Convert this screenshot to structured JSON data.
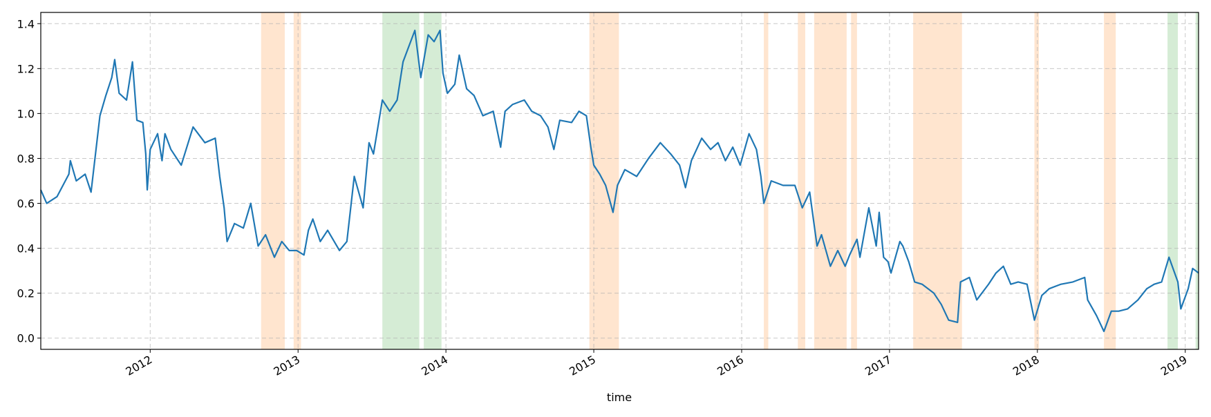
{
  "chart_data": {
    "type": "line",
    "x_label": "time",
    "xlim": [
      2011.26,
      2019.09
    ],
    "xticks": [
      2012,
      2013,
      2014,
      2015,
      2016,
      2017,
      2018,
      2019
    ],
    "ylim": [
      -0.05,
      1.45
    ],
    "yticks": [
      {
        "value": 0,
        "label": "0.0"
      },
      0.2,
      0.4,
      0.6,
      0.8,
      {
        "value": 1,
        "label": "1.0"
      },
      1.2,
      1.4
    ],
    "grid": true,
    "spans": [
      {
        "color": "#ff7f0e",
        "x": [
          2012.75,
          2012.91
        ]
      },
      {
        "color": "#ff7f0e",
        "x": [
          2012.97,
          2013.02
        ]
      },
      {
        "color": "#2ca02c",
        "x": [
          2013.57,
          2013.82
        ]
      },
      {
        "color": "#2ca02c",
        "x": [
          2013.85,
          2013.97
        ]
      },
      {
        "color": "#ff7f0e",
        "x": [
          2014.97,
          2015.17
        ]
      },
      {
        "color": "#ff7f0e",
        "x": [
          2016.15,
          2016.18
        ]
      },
      {
        "color": "#ff7f0e",
        "x": [
          2016.38,
          2016.43
        ]
      },
      {
        "color": "#ff7f0e",
        "x": [
          2016.49,
          2016.71
        ]
      },
      {
        "color": "#ff7f0e",
        "x": [
          2016.74,
          2016.78
        ]
      },
      {
        "color": "#ff7f0e",
        "x": [
          2017.16,
          2017.49
        ]
      },
      {
        "color": "#ff7f0e",
        "x": [
          2017.98,
          2018.01
        ]
      },
      {
        "color": "#ff7f0e",
        "x": [
          2018.45,
          2018.53
        ]
      },
      {
        "color": "#2ca02c",
        "x": [
          2018.88,
          2018.95
        ]
      },
      {
        "color": "#2ca02c",
        "x": [
          2019.07,
          2019.09
        ]
      }
    ],
    "series": [
      {
        "color": "#1f77b4",
        "x": [
          2011.26,
          2011.3,
          2011.37,
          2011.45,
          2011.46,
          2011.5,
          2011.56,
          2011.6,
          2011.63,
          2011.66,
          2011.7,
          2011.74,
          2011.76,
          2011.79,
          2011.84,
          2011.88,
          2011.91,
          2011.95,
          2011.97,
          2011.98,
          2012.0,
          2012.05,
          2012.08,
          2012.1,
          2012.14,
          2012.21,
          2012.29,
          2012.37,
          2012.44,
          2012.47,
          2012.5,
          2012.52,
          2012.57,
          2012.63,
          2012.68,
          2012.73,
          2012.78,
          2012.84,
          2012.89,
          2012.94,
          2012.99,
          2013.04,
          2013.07,
          2013.1,
          2013.15,
          2013.2,
          2013.28,
          2013.33,
          2013.38,
          2013.44,
          2013.48,
          2013.51,
          2013.57,
          2013.62,
          2013.67,
          2013.71,
          2013.75,
          2013.79,
          2013.83,
          2013.88,
          2013.92,
          2013.96,
          2013.98,
          2014.01,
          2014.06,
          2014.09,
          2014.14,
          2014.19,
          2014.25,
          2014.32,
          2014.37,
          2014.4,
          2014.45,
          2014.53,
          2014.58,
          2014.64,
          2014.69,
          2014.73,
          2014.77,
          2014.85,
          2014.9,
          2014.95,
          2014.98,
          2015.0,
          2015.04,
          2015.08,
          2015.13,
          2015.16,
          2015.21,
          2015.29,
          2015.37,
          2015.45,
          2015.52,
          2015.58,
          2015.62,
          2015.66,
          2015.73,
          2015.79,
          2015.84,
          2015.89,
          2015.94,
          2015.99,
          2016.05,
          2016.1,
          2016.13,
          2016.15,
          2016.2,
          2016.28,
          2016.36,
          2016.41,
          2016.46,
          2016.51,
          2016.54,
          2016.6,
          2016.65,
          2016.7,
          2016.73,
          2016.78,
          2016.8,
          2016.86,
          2016.91,
          2016.93,
          2016.96,
          2016.99,
          2017.01,
          2017.07,
          2017.09,
          2017.13,
          2017.17,
          2017.22,
          2017.3,
          2017.35,
          2017.4,
          2017.46,
          2017.48,
          2017.54,
          2017.59,
          2017.67,
          2017.72,
          2017.77,
          2017.82,
          2017.87,
          2017.93,
          2017.98,
          2018.03,
          2018.08,
          2018.16,
          2018.24,
          2018.32,
          2018.34,
          2018.4,
          2018.45,
          2018.5,
          2018.55,
          2018.61,
          2018.68,
          2018.74,
          2018.79,
          2018.84,
          2018.89,
          2018.95,
          2018.97,
          2019.02,
          2019.05,
          2019.09
        ],
        "values": [
          0.66,
          0.6,
          0.63,
          0.73,
          0.79,
          0.7,
          0.73,
          0.65,
          0.82,
          0.99,
          1.08,
          1.16,
          1.24,
          1.09,
          1.06,
          1.23,
          0.97,
          0.96,
          0.82,
          0.66,
          0.84,
          0.91,
          0.79,
          0.91,
          0.84,
          0.77,
          0.94,
          0.87,
          0.89,
          0.72,
          0.58,
          0.43,
          0.51,
          0.49,
          0.6,
          0.41,
          0.46,
          0.36,
          0.43,
          0.39,
          0.39,
          0.37,
          0.48,
          0.53,
          0.43,
          0.48,
          0.39,
          0.43,
          0.72,
          0.58,
          0.87,
          0.82,
          1.06,
          1.01,
          1.06,
          1.23,
          1.3,
          1.37,
          1.16,
          1.35,
          1.32,
          1.37,
          1.18,
          1.09,
          1.13,
          1.26,
          1.11,
          1.08,
          0.99,
          1.01,
          0.85,
          1.01,
          1.04,
          1.06,
          1.01,
          0.99,
          0.94,
          0.84,
          0.97,
          0.96,
          1.01,
          0.99,
          0.85,
          0.77,
          0.73,
          0.68,
          0.56,
          0.68,
          0.75,
          0.72,
          0.8,
          0.87,
          0.82,
          0.77,
          0.67,
          0.79,
          0.89,
          0.84,
          0.87,
          0.79,
          0.85,
          0.77,
          0.91,
          0.84,
          0.72,
          0.6,
          0.7,
          0.68,
          0.68,
          0.58,
          0.65,
          0.41,
          0.46,
          0.32,
          0.39,
          0.32,
          0.37,
          0.44,
          0.36,
          0.58,
          0.41,
          0.56,
          0.36,
          0.34,
          0.29,
          0.43,
          0.41,
          0.34,
          0.25,
          0.24,
          0.2,
          0.15,
          0.08,
          0.07,
          0.25,
          0.27,
          0.17,
          0.24,
          0.29,
          0.32,
          0.24,
          0.25,
          0.24,
          0.08,
          0.19,
          0.22,
          0.24,
          0.25,
          0.27,
          0.17,
          0.1,
          0.03,
          0.12,
          0.12,
          0.13,
          0.17,
          0.22,
          0.24,
          0.25,
          0.36,
          0.25,
          0.13,
          0.22,
          0.31,
          0.29
        ]
      }
    ]
  }
}
